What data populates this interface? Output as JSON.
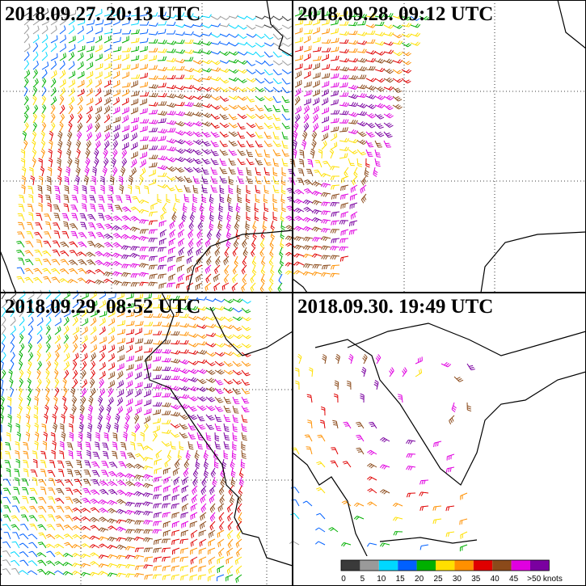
{
  "panels": [
    {
      "title": "2018.09.27. 20:13 UTC"
    },
    {
      "title": "2018.09.28. 09:12 UTC"
    },
    {
      "title": "2018.09.29. 08:52 UTC"
    },
    {
      "title": "2018.09.30. 19:49 UTC"
    }
  ],
  "colorbar": {
    "colors": [
      "#3a3a3a",
      "#9a9a9a",
      "#00d8ff",
      "#0060ff",
      "#00b000",
      "#ffe000",
      "#ff9000",
      "#e00000",
      "#8b4a1a",
      "#e000e0",
      "#7a00a0"
    ],
    "labels": [
      "0",
      "5",
      "10",
      "15",
      "20",
      "25",
      "30",
      "35",
      "40",
      "45",
      ">50 knots"
    ]
  }
}
